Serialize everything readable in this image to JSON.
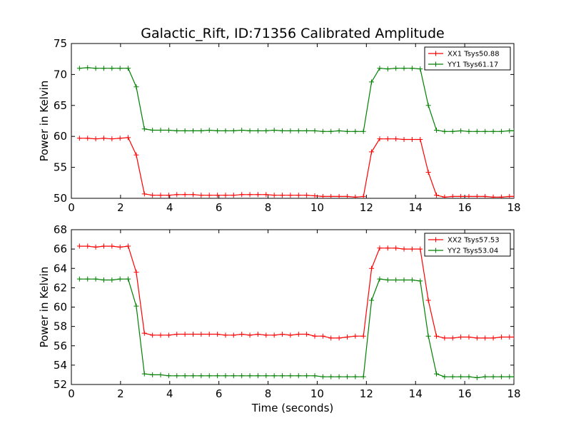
{
  "figure": {
    "title": "Galactic_Rift, ID:71356 Calibrated Amplitude",
    "xlabel": "Time (seconds)"
  },
  "chart_data": [
    {
      "type": "line",
      "title": "Galactic_Rift, ID:71356 Calibrated Amplitude",
      "xlabel": "",
      "ylabel": "Power in Kelvin",
      "xlim": [
        0,
        18
      ],
      "ylim": [
        50,
        75
      ],
      "xticks": [
        "0",
        "2",
        "4",
        "6",
        "8",
        "10",
        "12",
        "14",
        "16",
        "18"
      ],
      "yticks": [
        "50",
        "55",
        "60",
        "65",
        "70",
        "75"
      ],
      "legend_position": "top-right",
      "grid": false,
      "x": [
        0.33,
        0.66,
        0.99,
        1.32,
        1.65,
        1.98,
        2.31,
        2.64,
        2.97,
        3.3,
        3.63,
        3.96,
        4.29,
        4.62,
        4.95,
        5.28,
        5.61,
        5.94,
        6.27,
        6.6,
        6.93,
        7.26,
        7.59,
        7.92,
        8.25,
        8.58,
        8.91,
        9.24,
        9.57,
        9.9,
        10.23,
        10.56,
        10.89,
        11.22,
        11.55,
        11.88,
        12.21,
        12.54,
        12.87,
        13.2,
        13.53,
        13.86,
        14.19,
        14.52,
        14.85,
        15.18,
        15.51,
        15.84,
        16.17,
        16.5,
        16.83,
        17.16,
        17.49,
        17.82,
        18.0
      ],
      "series": [
        {
          "name": "XX1 Tsys50.88",
          "color": "#ff0000",
          "values": [
            59.7,
            59.7,
            59.6,
            59.7,
            59.6,
            59.7,
            59.8,
            57.0,
            50.7,
            50.5,
            50.5,
            50.5,
            50.6,
            50.6,
            50.6,
            50.5,
            50.5,
            50.5,
            50.5,
            50.5,
            50.6,
            50.6,
            50.6,
            50.6,
            50.5,
            50.5,
            50.5,
            50.5,
            50.5,
            50.4,
            50.3,
            50.3,
            50.3,
            50.3,
            50.2,
            50.3,
            57.5,
            59.6,
            59.6,
            59.6,
            59.5,
            59.5,
            59.5,
            54.2,
            50.5,
            50.2,
            50.3,
            50.3,
            50.3,
            50.3,
            50.3,
            50.2,
            50.2,
            50.3,
            50.3
          ]
        },
        {
          "name": "YY1 Tsys61.17",
          "color": "#008000",
          "values": [
            71.0,
            71.1,
            71.0,
            71.0,
            71.0,
            71.0,
            71.0,
            68.0,
            61.2,
            61.0,
            61.0,
            61.0,
            60.9,
            60.9,
            60.9,
            60.9,
            61.0,
            60.9,
            60.9,
            60.9,
            61.0,
            60.9,
            60.9,
            60.9,
            61.0,
            60.9,
            60.9,
            60.9,
            60.9,
            60.9,
            60.8,
            60.8,
            60.9,
            60.8,
            60.8,
            60.8,
            68.8,
            71.0,
            70.9,
            71.0,
            71.0,
            71.0,
            70.9,
            65.0,
            61.0,
            60.8,
            60.8,
            60.9,
            60.8,
            60.8,
            60.8,
            60.8,
            60.8,
            60.9,
            60.9
          ]
        }
      ]
    },
    {
      "type": "line",
      "title": "",
      "xlabel": "Time (seconds)",
      "ylabel": "Power in Kelvin",
      "xlim": [
        0,
        18
      ],
      "ylim": [
        52,
        68
      ],
      "xticks": [
        "0",
        "2",
        "4",
        "6",
        "8",
        "10",
        "12",
        "14",
        "16",
        "18"
      ],
      "yticks": [
        "52",
        "54",
        "56",
        "58",
        "60",
        "62",
        "64",
        "66",
        "68"
      ],
      "legend_position": "top-right",
      "grid": false,
      "x": [
        0.33,
        0.66,
        0.99,
        1.32,
        1.65,
        1.98,
        2.31,
        2.64,
        2.97,
        3.3,
        3.63,
        3.96,
        4.29,
        4.62,
        4.95,
        5.28,
        5.61,
        5.94,
        6.27,
        6.6,
        6.93,
        7.26,
        7.59,
        7.92,
        8.25,
        8.58,
        8.91,
        9.24,
        9.57,
        9.9,
        10.23,
        10.56,
        10.89,
        11.22,
        11.55,
        11.88,
        12.21,
        12.54,
        12.87,
        13.2,
        13.53,
        13.86,
        14.19,
        14.52,
        14.85,
        15.18,
        15.51,
        15.84,
        16.17,
        16.5,
        16.83,
        17.16,
        17.49,
        17.82,
        18.0
      ],
      "series": [
        {
          "name": "XX2 Tsys57.53",
          "color": "#ff0000",
          "values": [
            66.3,
            66.3,
            66.2,
            66.3,
            66.3,
            66.2,
            66.3,
            63.6,
            57.3,
            57.1,
            57.1,
            57.1,
            57.2,
            57.2,
            57.2,
            57.2,
            57.2,
            57.2,
            57.1,
            57.1,
            57.2,
            57.1,
            57.2,
            57.1,
            57.1,
            57.2,
            57.1,
            57.2,
            57.2,
            57.0,
            57.0,
            56.8,
            56.8,
            56.9,
            57.0,
            57.0,
            64.0,
            66.1,
            66.1,
            66.1,
            66.0,
            66.0,
            66.0,
            60.7,
            57.0,
            56.8,
            56.8,
            56.9,
            56.9,
            56.8,
            56.8,
            56.8,
            56.9,
            56.9,
            56.9
          ]
        },
        {
          "name": "YY2 Tsys53.04",
          "color": "#008000",
          "values": [
            62.9,
            62.9,
            62.9,
            62.8,
            62.8,
            62.9,
            62.9,
            60.1,
            53.1,
            53.0,
            53.0,
            52.9,
            52.9,
            52.9,
            52.9,
            52.9,
            52.9,
            52.9,
            52.9,
            52.9,
            52.9,
            52.9,
            52.9,
            52.9,
            52.9,
            52.9,
            52.9,
            52.9,
            52.9,
            52.9,
            52.8,
            52.8,
            52.8,
            52.8,
            52.8,
            52.8,
            60.7,
            62.9,
            62.8,
            62.8,
            62.8,
            62.8,
            62.7,
            57.0,
            53.1,
            52.8,
            52.8,
            52.8,
            52.8,
            52.7,
            52.8,
            52.8,
            52.8,
            52.8,
            52.8
          ]
        }
      ]
    }
  ]
}
